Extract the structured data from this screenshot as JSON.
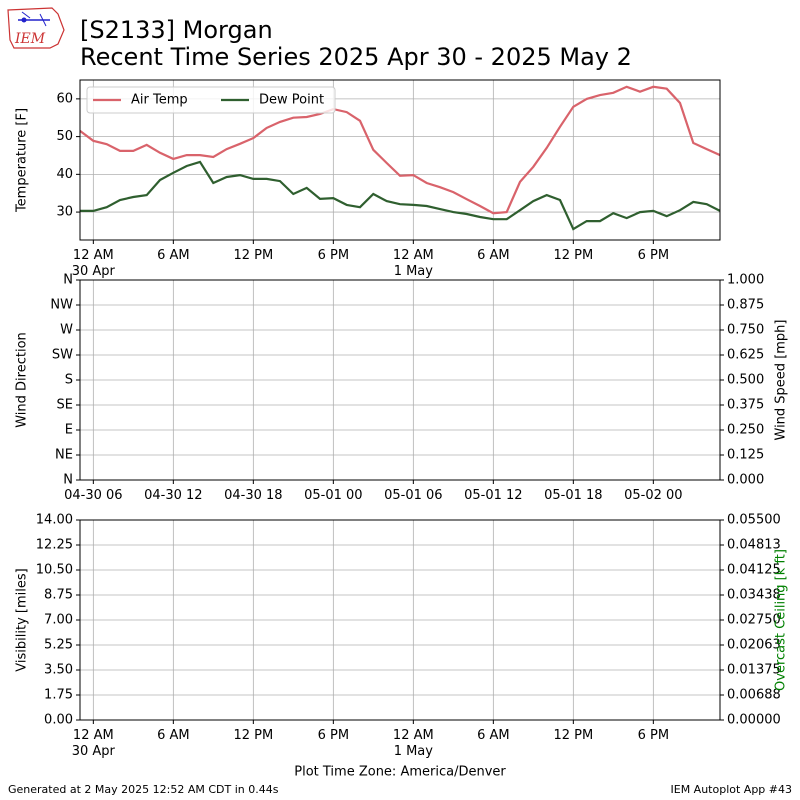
{
  "header": {
    "logo": "IEM",
    "title": "[S2133] Morgan",
    "subtitle": "Recent Time Series 2025 Apr 30 - 2025 May 2"
  },
  "footer": {
    "generated": "Generated at 2 May 2025 12:52 AM CDT in 0.44s",
    "app": "IEM Autoplot App #43"
  },
  "chart_data": [
    {
      "type": "line",
      "ylabel": "Temperature [F]",
      "grid": true,
      "legend": "upper left",
      "x": [
        "2025-04-29 23:00",
        "2025-04-30 00:00",
        "2025-04-30 01:00",
        "2025-04-30 02:00",
        "2025-04-30 03:00",
        "2025-04-30 04:00",
        "2025-04-30 05:00",
        "2025-04-30 06:00",
        "2025-04-30 07:00",
        "2025-04-30 08:00",
        "2025-04-30 09:00",
        "2025-04-30 10:00",
        "2025-04-30 11:00",
        "2025-04-30 12:00",
        "2025-04-30 13:00",
        "2025-04-30 14:00",
        "2025-04-30 15:00",
        "2025-04-30 16:00",
        "2025-04-30 17:00",
        "2025-04-30 18:00",
        "2025-04-30 19:00",
        "2025-04-30 20:00",
        "2025-04-30 21:00",
        "2025-04-30 22:00",
        "2025-04-30 23:00",
        "2025-05-01 00:00",
        "2025-05-01 01:00",
        "2025-05-01 02:00",
        "2025-05-01 03:00",
        "2025-05-01 04:00",
        "2025-05-01 05:00",
        "2025-05-01 06:00",
        "2025-05-01 07:00",
        "2025-05-01 08:00",
        "2025-05-01 09:00",
        "2025-05-01 10:00",
        "2025-05-01 11:00",
        "2025-05-01 12:00",
        "2025-05-01 13:00",
        "2025-05-01 14:00",
        "2025-05-01 15:00",
        "2025-05-01 16:00",
        "2025-05-01 17:00",
        "2025-05-01 18:00",
        "2025-05-01 19:00",
        "2025-05-01 20:00",
        "2025-05-01 21:00",
        "2025-05-01 22:00",
        "2025-05-01 23:00"
      ],
      "series": [
        {
          "name": "Air Temp",
          "color": "#d9636b",
          "values": [
            51.5,
            48.9,
            48,
            46.2,
            46.2,
            47.8,
            45.7,
            44.1,
            45.1,
            45.1,
            44.6,
            46.7,
            48.1,
            49.6,
            52.3,
            53.9,
            55,
            55.2,
            56,
            57.3,
            56.5,
            54.2,
            46.5,
            43,
            39.6,
            39.8,
            37.7,
            36.6,
            35.3,
            33.4,
            31.6,
            29.7,
            30,
            38,
            42,
            47,
            52.6,
            57.9,
            60,
            61,
            61.6,
            63.2,
            61.9,
            63.2,
            62.7,
            58.9,
            48.3,
            46.7,
            45.1
          ]
        },
        {
          "name": "Dew Point",
          "color": "#2f5f2f",
          "values": [
            30.3,
            30.3,
            31.3,
            33.2,
            34,
            34.5,
            38.5,
            40.4,
            42.2,
            43.3,
            37.7,
            39.3,
            39.8,
            38.8,
            38.8,
            38.2,
            34.8,
            36.4,
            33.5,
            33.7,
            31.9,
            31.3,
            34.8,
            32.9,
            32.1,
            31.9,
            31.6,
            30.8,
            30,
            29.5,
            28.7,
            28.1,
            28.1,
            30.5,
            32.9,
            34.5,
            33.2,
            25.5,
            27.6,
            27.6,
            29.7,
            28.4,
            30,
            30.3,
            28.9,
            30.5,
            32.7,
            32.1,
            30.3
          ]
        }
      ],
      "xlim": [
        "2025-04-29 23:00",
        "2025-05-01 23:00"
      ],
      "xticks": [
        {
          "value": "2025-04-30 00:00",
          "label": "12 AM\n30 Apr"
        },
        {
          "value": "2025-04-30 06:00",
          "label": "6 AM"
        },
        {
          "value": "2025-04-30 12:00",
          "label": "12 PM"
        },
        {
          "value": "2025-04-30 18:00",
          "label": "6 PM"
        },
        {
          "value": "2025-05-01 00:00",
          "label": "12 AM\n1 May"
        },
        {
          "value": "2025-05-01 06:00",
          "label": "6 AM"
        },
        {
          "value": "2025-05-01 12:00",
          "label": "12 PM"
        },
        {
          "value": "2025-05-01 18:00",
          "label": "6 PM"
        }
      ],
      "ylim": [
        22.6,
        65
      ],
      "yticks": [
        30,
        40,
        50,
        60
      ]
    },
    {
      "type": "line",
      "ylabel": "Wind Direction",
      "y2label": "Wind Speed [mph]",
      "y2label_color": "#000000",
      "grid": true,
      "xlim": [
        "2025-04-29 23:00",
        "2025-05-01 23:00"
      ],
      "xticks": [
        {
          "value": "2025-04-30 00:00",
          "label": "04-30 06"
        },
        {
          "value": "2025-04-30 06:00",
          "label": "04-30 12"
        },
        {
          "value": "2025-04-30 12:00",
          "label": "04-30 18"
        },
        {
          "value": "2025-04-30 18:00",
          "label": "05-01 00"
        },
        {
          "value": "2025-05-01 00:00",
          "label": "05-01 06"
        },
        {
          "value": "2025-05-01 06:00",
          "label": "05-01 12"
        },
        {
          "value": "2025-05-01 12:00",
          "label": "05-01 18"
        },
        {
          "value": "2025-05-01 18:00",
          "label": "05-02 00"
        }
      ],
      "ylim": [
        0,
        360
      ],
      "yticks": [
        {
          "value": 0,
          "label": "N"
        },
        {
          "value": 45,
          "label": "NE"
        },
        {
          "value": 90,
          "label": "E"
        },
        {
          "value": 135,
          "label": "SE"
        },
        {
          "value": 180,
          "label": "S"
        },
        {
          "value": 225,
          "label": "SW"
        },
        {
          "value": 270,
          "label": "W"
        },
        {
          "value": 315,
          "label": "NW"
        },
        {
          "value": 360,
          "label": "N"
        }
      ],
      "y2lim": [
        0,
        1
      ],
      "y2ticks": [
        {
          "value": 0,
          "label": "0.000"
        },
        {
          "value": 0.125,
          "label": "0.125"
        },
        {
          "value": 0.25,
          "label": "0.250"
        },
        {
          "value": 0.375,
          "label": "0.375"
        },
        {
          "value": 0.5,
          "label": "0.500"
        },
        {
          "value": 0.625,
          "label": "0.625"
        },
        {
          "value": 0.75,
          "label": "0.750"
        },
        {
          "value": 0.875,
          "label": "0.875"
        },
        {
          "value": 1,
          "label": "1.000"
        }
      ]
    },
    {
      "type": "line",
      "ylabel": "Visibility [miles]",
      "y2label": "Overcast Ceiling [k ft]",
      "y2label_color": "#008000",
      "xlabel": "Plot Time Zone: America/Denver",
      "grid": true,
      "xlim": [
        "2025-04-29 23:00",
        "2025-05-01 23:00"
      ],
      "xticks": [
        {
          "value": "2025-04-30 00:00",
          "label": "12 AM\n30 Apr"
        },
        {
          "value": "2025-04-30 06:00",
          "label": "6 AM"
        },
        {
          "value": "2025-04-30 12:00",
          "label": "12 PM"
        },
        {
          "value": "2025-04-30 18:00",
          "label": "6 PM"
        },
        {
          "value": "2025-05-01 00:00",
          "label": "12 AM\n1 May"
        },
        {
          "value": "2025-05-01 06:00",
          "label": "6 AM"
        },
        {
          "value": "2025-05-01 12:00",
          "label": "12 PM"
        },
        {
          "value": "2025-05-01 18:00",
          "label": "6 PM"
        }
      ],
      "ylim": [
        0,
        14
      ],
      "yticks": [
        {
          "value": 0,
          "label": "0.00"
        },
        {
          "value": 1.75,
          "label": "1.75"
        },
        {
          "value": 3.5,
          "label": "3.50"
        },
        {
          "value": 5.25,
          "label": "5.25"
        },
        {
          "value": 7,
          "label": "7.00"
        },
        {
          "value": 8.75,
          "label": "8.75"
        },
        {
          "value": 10.5,
          "label": "10.50"
        },
        {
          "value": 12.25,
          "label": "12.25"
        },
        {
          "value": 14,
          "label": "14.00"
        }
      ],
      "y2lim": [
        0,
        0.055
      ],
      "y2ticks": [
        {
          "value": 0,
          "label": "0.00000"
        },
        {
          "value": 0.006875,
          "label": "0.00688"
        },
        {
          "value": 0.01375,
          "label": "0.01375"
        },
        {
          "value": 0.020625,
          "label": "0.02063"
        },
        {
          "value": 0.0275,
          "label": "0.02750"
        },
        {
          "value": 0.034375,
          "label": "0.03438"
        },
        {
          "value": 0.04125,
          "label": "0.04125"
        },
        {
          "value": 0.048125,
          "label": "0.04813"
        },
        {
          "value": 0.055,
          "label": "0.05500"
        }
      ]
    }
  ]
}
